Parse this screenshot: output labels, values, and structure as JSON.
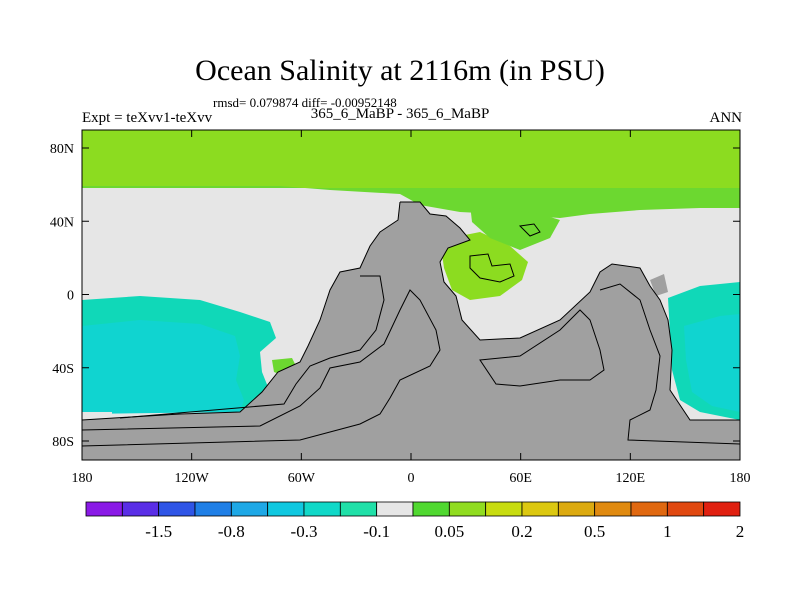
{
  "title": "Ocean Salinity at 2116m (in PSU)",
  "stats": "rmsd= 0.079874 diff= -0.00952148",
  "left_label": "Expt = teXvv1-teXvv",
  "center_label": "365_6_MaBP - 365_6_MaBP",
  "right_label": "ANN",
  "x_ticks": [
    "180",
    "120W",
    "60W",
    "0",
    "60E",
    "120E",
    "180"
  ],
  "y_ticks": [
    "80N",
    "40N",
    "0",
    "40S",
    "80S"
  ],
  "colorbar": {
    "colors": [
      "#8a1ae6",
      "#5a2ee6",
      "#2f55e6",
      "#1f7fe6",
      "#1ea8e6",
      "#10c8e0",
      "#10d8c8",
      "#20e0a8",
      "#e6e6e6",
      "#50d830",
      "#90dc20",
      "#c8dc10",
      "#dcc810",
      "#dcaa10",
      "#e08a10",
      "#e06810",
      "#e04810",
      "#e02010"
    ],
    "labels": [
      "-1.5",
      "-0.8",
      "-0.3",
      "-0.1",
      "0.05",
      "0.2",
      "0.5",
      "1",
      "2"
    ]
  },
  "colors": {
    "land": "#a0a0a0",
    "near_zero": "#e6e6e6",
    "positive_light": "#8cdc20",
    "positive_mid": "#6cd830",
    "negative_light": "#10d8b8",
    "negative_mid": "#10d4d0"
  }
}
